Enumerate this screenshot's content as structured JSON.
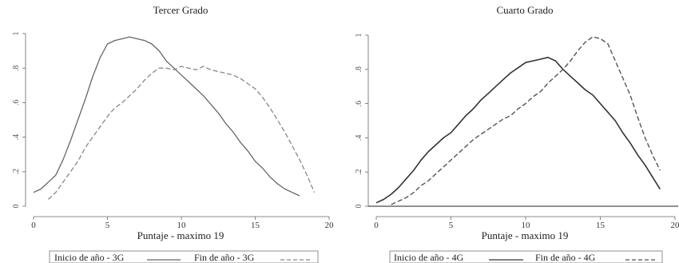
{
  "chart_data": [
    {
      "type": "line",
      "title": "Tercer Grado",
      "xlabel": "Puntaje - maximo 19",
      "ylabel": "",
      "xlim": [
        0,
        20
      ],
      "ylim": [
        0,
        1
      ],
      "xticks": [
        "0",
        "5",
        "10",
        "15",
        "20"
      ],
      "yticks": [
        "0",
        ".2",
        ".4",
        ".6",
        ".8",
        "1"
      ],
      "grid": false,
      "legend": "bottom",
      "series": [
        {
          "name": "Inicio de año - 3G",
          "style": "solid",
          "color": "#666666",
          "x": [
            0,
            0.5,
            1,
            1.5,
            2,
            2.5,
            3,
            3.5,
            4,
            4.5,
            5,
            5.5,
            6,
            6.5,
            7,
            7.5,
            8,
            8.5,
            9,
            9.5,
            10,
            10.5,
            11,
            11.5,
            12,
            12.5,
            13,
            13.5,
            14,
            14.5,
            15,
            15.5,
            16,
            16.5,
            17,
            17.5,
            18
          ],
          "y": [
            0.08,
            0.1,
            0.14,
            0.18,
            0.27,
            0.38,
            0.5,
            0.62,
            0.75,
            0.86,
            0.94,
            0.96,
            0.97,
            0.98,
            0.97,
            0.96,
            0.94,
            0.9,
            0.84,
            0.8,
            0.76,
            0.72,
            0.68,
            0.64,
            0.59,
            0.54,
            0.48,
            0.43,
            0.37,
            0.32,
            0.26,
            0.22,
            0.17,
            0.13,
            0.1,
            0.08,
            0.06
          ]
        },
        {
          "name": "Fin de año - 3G",
          "style": "dashed",
          "color": "#888888",
          "x": [
            1,
            1.5,
            2,
            2.5,
            3,
            3.5,
            4,
            4.5,
            5,
            5.5,
            6,
            6.5,
            7,
            7.5,
            8,
            8.5,
            9,
            9.5,
            10,
            10.5,
            11,
            11.5,
            12,
            12.5,
            13,
            13.5,
            14,
            14.5,
            15,
            15.5,
            16,
            16.5,
            17,
            17.5,
            18,
            18.5,
            19
          ],
          "y": [
            0.04,
            0.08,
            0.14,
            0.2,
            0.26,
            0.34,
            0.4,
            0.46,
            0.52,
            0.57,
            0.6,
            0.64,
            0.68,
            0.73,
            0.77,
            0.8,
            0.8,
            0.79,
            0.81,
            0.8,
            0.79,
            0.81,
            0.79,
            0.78,
            0.77,
            0.76,
            0.74,
            0.71,
            0.68,
            0.63,
            0.57,
            0.5,
            0.43,
            0.35,
            0.27,
            0.18,
            0.08
          ]
        }
      ]
    },
    {
      "type": "line",
      "title": "Cuarto Grado",
      "xlabel": "Puntaje - maximo 19",
      "ylabel": "",
      "xlim": [
        0,
        20
      ],
      "ylim": [
        0,
        1
      ],
      "xticks": [
        "0",
        "5",
        "10",
        "15",
        "20"
      ],
      "yticks": [
        "0",
        ".2",
        ".4",
        ".6",
        ".8",
        "1"
      ],
      "grid": false,
      "legend": "bottom",
      "series": [
        {
          "name": "Inicio de año - 4G",
          "style": "solid",
          "color": "#333333",
          "x": [
            0,
            0.5,
            1,
            1.5,
            2,
            2.5,
            3,
            3.5,
            4,
            4.5,
            5,
            5.5,
            6,
            6.5,
            7,
            7.5,
            8,
            8.5,
            9,
            9.5,
            10,
            10.5,
            11,
            11.5,
            12,
            12.5,
            13,
            13.5,
            14,
            14.5,
            15,
            15.5,
            16,
            16.5,
            17,
            17.5,
            18,
            18.5,
            19
          ],
          "y": [
            0.02,
            0.04,
            0.07,
            0.11,
            0.16,
            0.21,
            0.27,
            0.32,
            0.36,
            0.4,
            0.43,
            0.48,
            0.53,
            0.57,
            0.62,
            0.66,
            0.7,
            0.74,
            0.78,
            0.81,
            0.84,
            0.85,
            0.86,
            0.87,
            0.85,
            0.8,
            0.76,
            0.72,
            0.68,
            0.65,
            0.6,
            0.55,
            0.5,
            0.43,
            0.37,
            0.3,
            0.24,
            0.17,
            0.1
          ]
        },
        {
          "name": "Fin de año - 4G",
          "style": "dashed",
          "color": "#555555",
          "x": [
            1,
            1.5,
            2,
            2.5,
            3,
            3.5,
            4,
            4.5,
            5,
            5.5,
            6,
            6.5,
            7,
            7.5,
            8,
            8.5,
            9,
            9.5,
            10,
            10.5,
            11,
            11.5,
            12,
            12.5,
            13,
            13.5,
            14,
            14.5,
            15,
            15.5,
            16,
            16.5,
            17,
            17.5,
            18,
            18.5,
            19
          ],
          "y": [
            0.01,
            0.03,
            0.05,
            0.08,
            0.12,
            0.15,
            0.19,
            0.23,
            0.27,
            0.31,
            0.35,
            0.39,
            0.42,
            0.45,
            0.48,
            0.51,
            0.53,
            0.57,
            0.6,
            0.64,
            0.67,
            0.72,
            0.76,
            0.8,
            0.85,
            0.91,
            0.96,
            0.99,
            0.98,
            0.95,
            0.85,
            0.75,
            0.65,
            0.52,
            0.4,
            0.3,
            0.21
          ]
        }
      ]
    }
  ]
}
